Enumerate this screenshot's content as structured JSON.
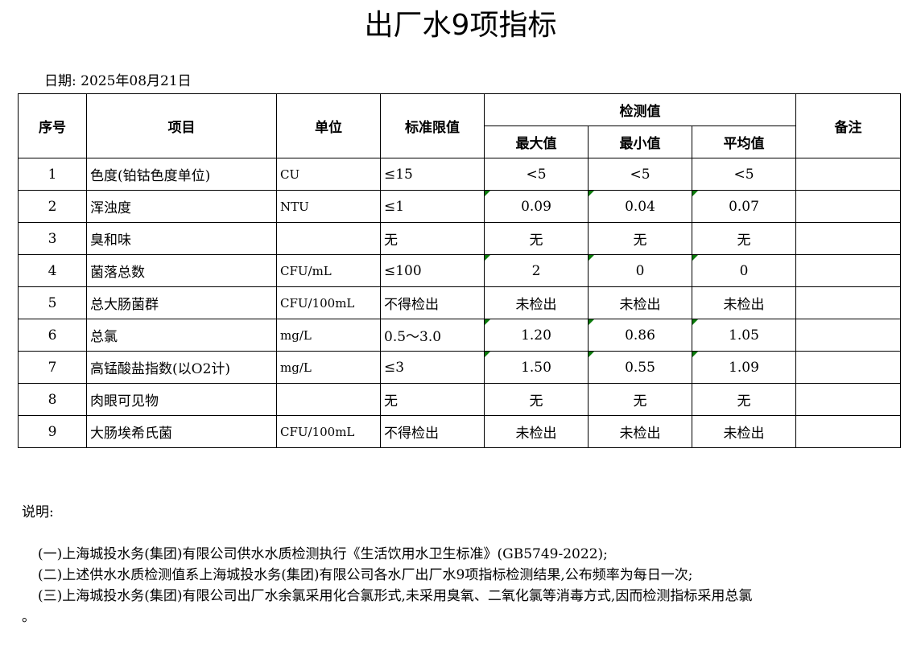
{
  "title": "出厂水9项指标",
  "date": "日期: 2025年08月21日",
  "headers": {
    "no": "序号",
    "item": "项目",
    "unit": "单位",
    "limit": "标准限值",
    "measured": "检测值",
    "max": "最大值",
    "min": "最小值",
    "avg": "平均值",
    "remark": "备注"
  },
  "rows": [
    {
      "no": "1",
      "item": "色度(铂钴色度单位)",
      "unit": "CU",
      "limit": "≤15",
      "max": "<5",
      "min": "<5",
      "avg": "<5",
      "flag": false
    },
    {
      "no": "2",
      "item": "浑浊度",
      "unit": "NTU",
      "limit": "≤1",
      "max": "0.09",
      "min": "0.04",
      "avg": "0.07",
      "flag": true
    },
    {
      "no": "3",
      "item": "臭和味",
      "unit": "",
      "limit": "无",
      "max": "无",
      "min": "无",
      "avg": "无",
      "flag": false
    },
    {
      "no": "4",
      "item": "菌落总数",
      "unit": "CFU/mL",
      "limit": "≤100",
      "max": "2",
      "min": "0",
      "avg": "0",
      "flag": true
    },
    {
      "no": "5",
      "item": "总大肠菌群",
      "unit": "CFU/100mL",
      "limit": "不得检出",
      "max": "未检出",
      "min": "未检出",
      "avg": "未检出",
      "flag": false
    },
    {
      "no": "6",
      "item": "总氯",
      "unit": "mg/L",
      "limit": "0.5～3.0",
      "max": "1.20",
      "min": "0.86",
      "avg": "1.05",
      "flag": true
    },
    {
      "no": "7",
      "item": "高锰酸盐指数(以O2计)",
      "unit": "mg/L",
      "limit": "≤3",
      "max": "1.50",
      "min": "0.55",
      "avg": "1.09",
      "flag": true
    },
    {
      "no": "8",
      "item": "肉眼可见物",
      "unit": "",
      "limit": "无",
      "max": "无",
      "min": "无",
      "avg": "无",
      "flag": false
    },
    {
      "no": "9",
      "item": "大肠埃希氏菌",
      "unit": "CFU/100mL",
      "limit": "不得检出",
      "max": "未检出",
      "min": "未检出",
      "avg": "未检出",
      "flag": false
    }
  ],
  "notes": {
    "heading": "说明:",
    "items": [
      "(一)上海城投水务(集团)有限公司供水水质检测执行《生活饮用水卫生标准》(GB5749-2022);",
      "(二)上述供水水质检测值系上海城投水务(集团)有限公司各水厂出厂水9项指标检测结果,公布频率为每日一次;",
      "(三)上海城投水务(集团)有限公司出厂水余氯采用化合氯形式,未采用臭氧、二氧化氯等消毒方式,因而检测指标采用总氯"
    ],
    "tail": "。"
  },
  "flag_color": "#0a7a0a"
}
